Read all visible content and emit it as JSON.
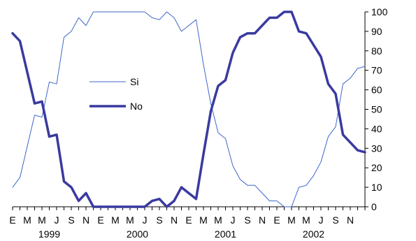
{
  "chart_data": {
    "type": "line",
    "title": "",
    "xlabel": "",
    "ylabel": "",
    "ylim": [
      0,
      100
    ],
    "yticks": [
      0,
      10,
      20,
      30,
      40,
      50,
      60,
      70,
      80,
      90,
      100
    ],
    "y_axis_side": "right",
    "grid": false,
    "legend": {
      "placement": "center-left",
      "entries": [
        "Si",
        "No"
      ]
    },
    "x_tick_labels": [
      "E",
      "M",
      "M",
      "J",
      "S",
      "N",
      "E",
      "M",
      "M",
      "J",
      "S",
      "N",
      "E",
      "M",
      "M",
      "J",
      "S",
      "N",
      "E",
      "M",
      "M",
      "J",
      "S",
      "N"
    ],
    "year_labels": [
      "1999",
      "2000",
      "2001",
      "2002"
    ],
    "series": [
      {
        "name": "Si",
        "color": "#3d67c9",
        "style": "thin",
        "values": [
          10,
          15,
          31,
          47,
          46,
          64,
          63,
          87,
          90,
          97,
          93,
          100,
          100,
          100,
          100,
          100,
          100,
          100,
          100,
          97,
          96,
          100,
          97,
          90,
          93,
          96,
          73,
          53,
          38,
          35,
          21,
          14,
          11,
          11,
          7,
          3,
          3,
          0,
          0,
          10,
          11,
          16,
          23,
          36,
          41,
          63,
          66,
          71,
          72
        ]
      },
      {
        "name": "No",
        "color": "#3a3aa0",
        "style": "thick",
        "values": [
          89,
          85,
          69,
          53,
          54,
          36,
          37,
          13,
          10,
          3,
          7,
          0,
          0,
          0,
          0,
          0,
          0,
          0,
          0,
          3,
          4,
          0,
          3,
          10,
          7,
          4,
          27,
          49,
          62,
          65,
          79,
          87,
          89,
          89,
          93,
          97,
          97,
          100,
          100,
          90,
          89,
          83,
          77,
          63,
          58,
          37,
          33,
          29,
          28
        ]
      }
    ]
  }
}
